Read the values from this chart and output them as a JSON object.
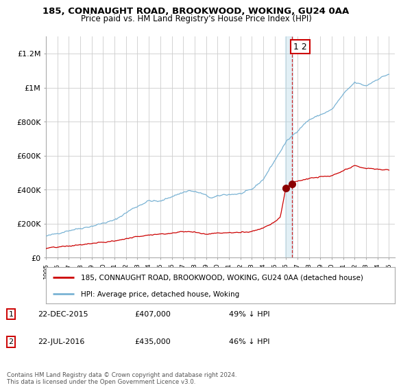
{
  "title": "185, CONNAUGHT ROAD, BROOKWOOD, WOKING, GU24 0AA",
  "subtitle": "Price paid vs. HM Land Registry's House Price Index (HPI)",
  "ylim": [
    0,
    1300000
  ],
  "xlim_start": 1995.0,
  "xlim_end": 2025.5,
  "yticks": [
    0,
    200000,
    400000,
    600000,
    800000,
    1000000,
    1200000
  ],
  "ytick_labels": [
    "£0",
    "£200K",
    "£400K",
    "£600K",
    "£800K",
    "£1M",
    "£1.2M"
  ],
  "sale1_date": 2015.97,
  "sale1_price": 407000,
  "sale2_date": 2016.55,
  "sale2_price": 435000,
  "hpi_color": "#7ab3d4",
  "price_color": "#cc0000",
  "vline_color": "#cc0000",
  "dot_color": "#8b0000",
  "legend_label_price": "185, CONNAUGHT ROAD, BROOKWOOD, WOKING, GU24 0AA (detached house)",
  "legend_label_hpi": "HPI: Average price, detached house, Woking",
  "table_row1": [
    "1",
    "22-DEC-2015",
    "£407,000",
    "49% ↓ HPI"
  ],
  "table_row2": [
    "2",
    "22-JUL-2016",
    "£435,000",
    "46% ↓ HPI"
  ],
  "footnote": "Contains HM Land Registry data © Crown copyright and database right 2024.\nThis data is licensed under the Open Government Licence v3.0.",
  "bg_color": "#ffffff",
  "grid_color": "#cccccc"
}
